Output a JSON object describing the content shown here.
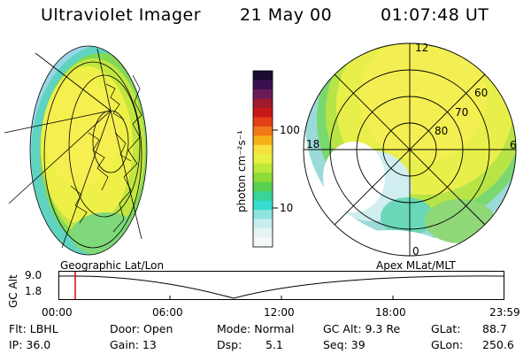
{
  "header": {
    "instrument": "Ultraviolet Imager",
    "date": "21 May 00",
    "time": "01:07:48 UT"
  },
  "colorbar": {
    "unit_label": "photon cm⁻²s⁻¹",
    "ticks": [
      "100",
      "10"
    ],
    "colors": [
      "#1a0c2e",
      "#3a1050",
      "#6a1a58",
      "#9e1a2c",
      "#c81818",
      "#e44018",
      "#f07818",
      "#f8b018",
      "#f8e040",
      "#e8f040",
      "#bce83a",
      "#8cdc38",
      "#58d050",
      "#38d498",
      "#38dcd0",
      "#90e4e0",
      "#c8eef0",
      "#e8f4f4",
      "#f4f8f8"
    ]
  },
  "left_panel": {
    "label": "Geographic Lat/Lon"
  },
  "right_panel": {
    "label": "Apex MLat/MLT",
    "mlt_labels": {
      "top": "12",
      "left": "18",
      "right": "6",
      "bottom": "0"
    },
    "lat_labels": [
      "60",
      "70",
      "80"
    ]
  },
  "altitude_plot": {
    "ylabel": "GC Alt",
    "yticks": [
      "9.0",
      "1.8"
    ],
    "xticks": [
      "00:00",
      "06:00",
      "12:00",
      "18:00",
      "23:59"
    ],
    "marker_color": "#e00000"
  },
  "info": {
    "flt": "Flt: LBHL",
    "ip": "IP: 36.0",
    "door": "Door: Open",
    "gain": "Gain: 13",
    "mode": "Mode: Normal",
    "dsp_label": "Dsp:",
    "dsp_value": "5.1",
    "gcalt": "GC Alt: 9.3 Re",
    "seq": "Seq: 39",
    "glat_label": "GLat:",
    "glat_value": "88.7",
    "glon_label": "GLon:",
    "glon_value": "250.6"
  }
}
